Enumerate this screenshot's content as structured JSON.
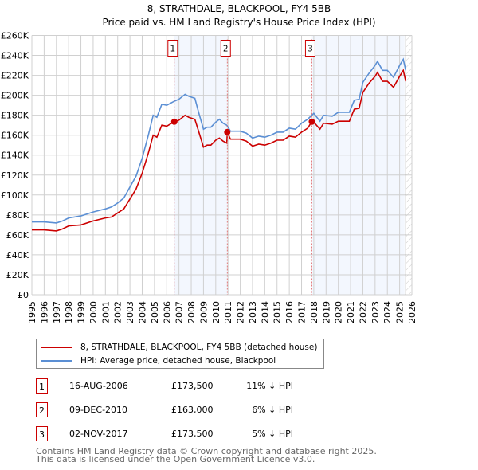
{
  "chart_data": {
    "type": "line",
    "title": "8, STRATHDALE, BLACKPOOL, FY4 5BB",
    "subtitle": "Price paid vs. HM Land Registry's House Price Index (HPI)",
    "xlim": [
      1995,
      2026
    ],
    "ylim": [
      0,
      260000
    ],
    "x_ticks": [
      "1995",
      "1996",
      "1997",
      "1998",
      "1999",
      "2000",
      "2001",
      "2002",
      "2003",
      "2004",
      "2005",
      "2006",
      "2007",
      "2008",
      "2009",
      "2010",
      "2011",
      "2012",
      "2013",
      "2014",
      "2015",
      "2016",
      "2017",
      "2018",
      "2019",
      "2020",
      "2021",
      "2022",
      "2023",
      "2024",
      "2025",
      "2026"
    ],
    "y_ticks": [
      "£0",
      "£20K",
      "£40K",
      "£60K",
      "£80K",
      "£100K",
      "£120K",
      "£140K",
      "£160K",
      "£180K",
      "£200K",
      "£220K",
      "£240K",
      "£260K"
    ],
    "grid": true,
    "series": [
      {
        "name": "8, STRATHDALE, BLACKPOOL, FY4 5BB (detached house)",
        "color": "#cc0000",
        "x": [
          1995,
          1996,
          1997,
          1997.5,
          1998,
          1999,
          2000,
          2001,
          2001.5,
          2002,
          2002.5,
          2003,
          2003.5,
          2004,
          2004.5,
          2004.9,
          2005.2,
          2005.6,
          2006,
          2006.62,
          2007,
          2007.5,
          2007.8,
          2008.3,
          2008.6,
          2009,
          2009.3,
          2009.6,
          2010,
          2010.3,
          2010.6,
          2010.9,
          2010.94,
          2011.2,
          2012,
          2012.5,
          2013,
          2013.5,
          2014,
          2014.5,
          2015,
          2015.5,
          2016,
          2016.5,
          2017,
          2017.5,
          2017.84,
          2018,
          2018.5,
          2018.8,
          2019.5,
          2020,
          2020.5,
          2020.9,
          2021.3,
          2021.7,
          2022,
          2022.5,
          2023,
          2023.2,
          2023.6,
          2024,
          2024.5,
          2025,
          2025.3,
          2025.5
        ],
        "y": [
          65,
          65,
          64,
          66,
          69,
          70,
          74,
          77,
          78,
          82,
          86,
          96,
          106,
          122,
          142,
          160,
          158,
          170,
          169,
          173.5,
          175,
          180,
          178,
          176,
          164,
          148,
          150,
          150,
          155,
          157,
          154,
          152,
          163,
          156,
          156,
          154,
          149,
          151,
          150,
          152,
          155,
          155,
          159,
          158,
          163,
          167,
          173.5,
          173,
          166,
          172,
          171,
          174,
          174,
          174,
          186,
          187,
          203,
          212,
          219,
          223,
          214,
          214,
          208,
          219,
          225,
          214
        ]
      },
      {
        "name": "HPI: Average price, detached house, Blackpool",
        "color": "#5b8fd4",
        "x": [
          1995,
          1996,
          1997,
          1997.5,
          1998,
          1999,
          2000,
          2001,
          2001.5,
          2002,
          2002.5,
          2003,
          2003.5,
          2004,
          2004.5,
          2004.9,
          2005.2,
          2005.6,
          2006,
          2006.62,
          2007,
          2007.5,
          2007.8,
          2008.3,
          2008.6,
          2009,
          2009.3,
          2009.6,
          2010,
          2010.3,
          2010.6,
          2010.9,
          2011.2,
          2012,
          2012.5,
          2013,
          2013.5,
          2014,
          2014.5,
          2015,
          2015.5,
          2016,
          2016.5,
          2017,
          2017.5,
          2018,
          2018.5,
          2018.8,
          2019.5,
          2020,
          2020.5,
          2020.9,
          2021.3,
          2021.7,
          2022,
          2022.5,
          2023,
          2023.2,
          2023.6,
          2024,
          2024.5,
          2025,
          2025.3,
          2025.5
        ],
        "y": [
          73,
          73,
          72,
          74,
          77,
          79,
          83,
          86,
          88,
          92,
          97,
          108,
          119,
          137,
          160,
          180,
          178,
          191,
          190,
          194,
          196,
          201,
          199,
          197,
          183,
          166,
          168,
          168,
          173,
          176,
          172,
          170,
          164,
          164,
          162,
          157,
          159,
          158,
          160,
          163,
          163,
          167,
          166,
          172,
          176,
          182,
          174,
          180,
          179,
          183,
          183,
          183,
          195,
          196,
          213,
          222,
          230,
          234,
          225,
          225,
          218,
          230,
          236,
          225
        ]
      }
    ],
    "y_unit": "thousands GBP",
    "sales": [
      {
        "label": "1",
        "x": 2006.62,
        "y": 173.5,
        "date": "16-AUG-2006",
        "price": "£173,500",
        "hpi": "11% ↓ HPI"
      },
      {
        "label": "2",
        "x": 2010.94,
        "y": 163,
        "date": "09-DEC-2010",
        "price": "£163,000",
        "hpi": "6% ↓ HPI"
      },
      {
        "label": "3",
        "x": 2017.84,
        "y": 173.5,
        "date": "02-NOV-2017",
        "price": "£173,500",
        "hpi": "5% ↓ HPI"
      }
    ],
    "shaded_ranges": [
      [
        2006.62,
        2010.94
      ],
      [
        2017.84,
        2025.4
      ]
    ],
    "data_end": 2025.5,
    "footer": [
      "Contains HM Land Registry data © Crown copyright and database right 2025.",
      "This data is licensed under the Open Government Licence v3.0."
    ]
  }
}
